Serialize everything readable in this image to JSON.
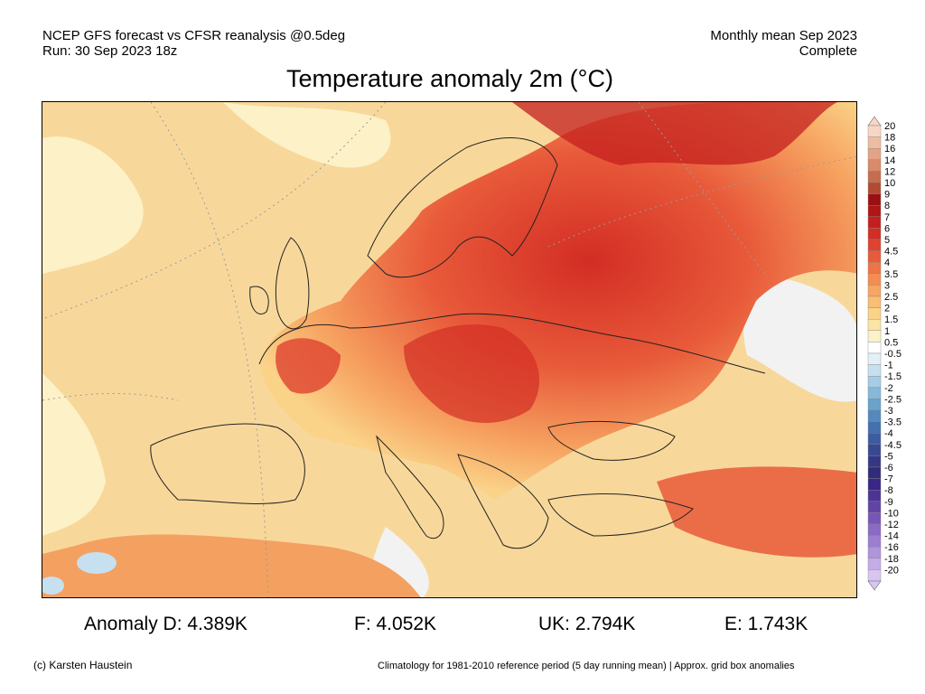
{
  "header": {
    "line1_left": "NCEP GFS forecast vs CFSR reanalysis @0.5deg",
    "line2_left": "Run: 30 Sep 2023 18z",
    "line1_right": "Monthly mean Sep 2023",
    "line2_right": "Complete"
  },
  "title": "Temperature anomaly 2m (°C)",
  "colorbar": {
    "labels": [
      "20",
      "18",
      "16",
      "14",
      "12",
      "10",
      "9",
      "8",
      "7",
      "6",
      "5",
      "4.5",
      "4",
      "3.5",
      "3",
      "2.5",
      "2",
      "1.5",
      "1",
      "0.5",
      "-0.5",
      "-1",
      "-1.5",
      "-2",
      "-2.5",
      "-3",
      "-3.5",
      "-4",
      "-4.5",
      "-5",
      "-6",
      "-7",
      "-8",
      "-9",
      "-10",
      "-12",
      "-14",
      "-16",
      "-18",
      "-20"
    ],
    "colors": [
      "#f7d6c4",
      "#eebca0",
      "#e4a384",
      "#d88a6a",
      "#c66d4e",
      "#b24a33",
      "#9a1010",
      "#b01515",
      "#c41f1e",
      "#d32d24",
      "#df4230",
      "#e85a3a",
      "#ef7445",
      "#f48d52",
      "#f7a562",
      "#f9bd74",
      "#fad389",
      "#fbe4a4",
      "#fdf1c8",
      "#ffffff",
      "#e4f0f8",
      "#c6e0f0",
      "#a6cde6",
      "#86b8da",
      "#6aa2cc",
      "#5489be",
      "#4570af",
      "#3d5ba0",
      "#384892",
      "#343884",
      "#322a7a",
      "#3a2686",
      "#4d3396",
      "#6244a6",
      "#7656b6",
      "#8a6ac4",
      "#9c7ed0",
      "#b094dc",
      "#c4ace6",
      "#d8c6f0"
    ]
  },
  "stats": {
    "s1": "Anomaly D: 4.389K",
    "s2": "F: 4.052K",
    "s3": "UK: 2.794K",
    "s4": "E: 1.743K"
  },
  "footer": {
    "left": "(c) Karsten Haustein",
    "right": "Climatology for 1981-2010 reference period (5 day running mean) | Approx. grid box anomalies"
  }
}
